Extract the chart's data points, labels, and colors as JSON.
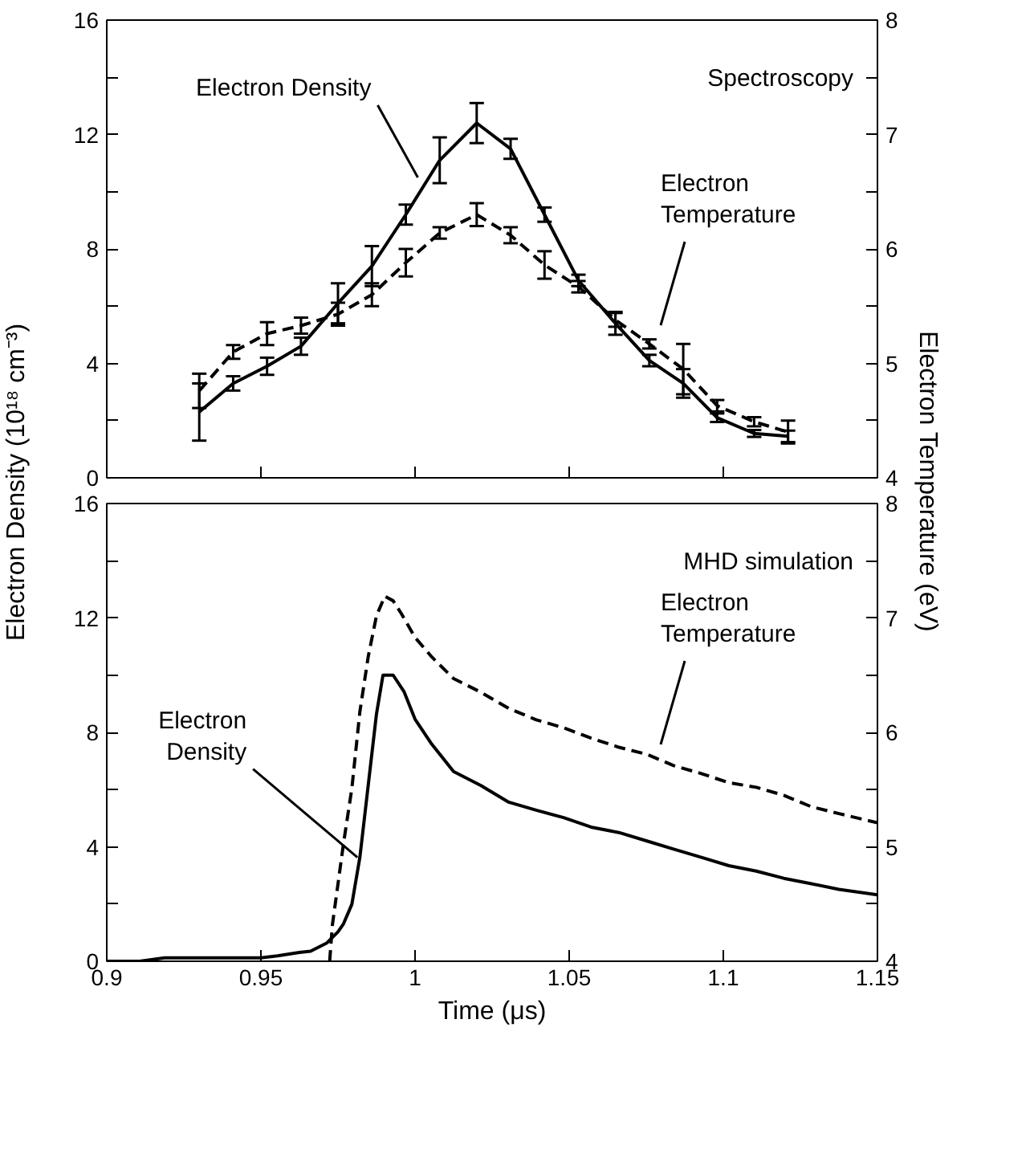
{
  "chart_data": [
    {
      "type": "line",
      "ylabel": "Electron Density (10¹⁸ cm⁻³)",
      "y2label": "Electron Temperature (eV)",
      "x": [
        0.93,
        0.941,
        0.952,
        0.963,
        0.975,
        0.986,
        0.997,
        1.008,
        1.02,
        1.031,
        1.042,
        1.053,
        1.065,
        1.076,
        1.087,
        1.098,
        1.11,
        1.121
      ],
      "series": [
        {
          "color": "#000000",
          "line_style": "solid",
          "values": [
            2.3,
            3.3,
            3.9,
            4.6,
            6.1,
            7.4,
            9.2,
            11.1,
            12.4,
            11.5,
            9.2,
            6.9,
            5.4,
            4.1,
            3.3,
            2.1,
            1.55,
            1.45
          ],
          "errors": [
            1.0,
            0.25,
            0.3,
            0.3,
            0.7,
            0.7,
            0.35,
            0.8,
            0.7,
            0.35,
            0.25,
            0.2,
            0.4,
            0.2,
            0.5,
            0.15,
            0.12,
            0.2
          ]
        },
        {
          "color": "#000000",
          "line_style": "dashed",
          "axis": "y2",
          "values": [
            4.76,
            5.1,
            5.26,
            5.33,
            5.43,
            5.6,
            5.88,
            6.14,
            6.3,
            6.12,
            5.86,
            5.67,
            5.38,
            5.17,
            4.95,
            4.63,
            4.49,
            4.4
          ],
          "errors": [
            0.15,
            0.06,
            0.1,
            0.07,
            0.1,
            0.1,
            0.12,
            0.05,
            0.1,
            0.07,
            0.12,
            0.05,
            0.06,
            0.04,
            0.22,
            0.05,
            0.04,
            0.1
          ]
        }
      ],
      "xlim": [
        0.9,
        1.15
      ],
      "xticks": [
        0.9,
        0.95,
        1,
        1.05,
        1.1,
        1.15
      ],
      "ylim": [
        0,
        16
      ],
      "yticks": [
        0,
        {
          "value": 2,
          "label": null
        },
        4,
        {
          "value": 6,
          "label": null
        },
        8,
        {
          "value": 10,
          "label": null
        },
        12,
        {
          "value": 14,
          "label": null
        },
        16
      ],
      "y2lim": [
        4,
        8
      ],
      "y2ticks": [
        4,
        {
          "value": 4.5,
          "label": null
        },
        5,
        {
          "value": 5.5,
          "label": null
        },
        6,
        {
          "value": 6.5,
          "label": null
        },
        7,
        {
          "value": 7.5,
          "label": null
        },
        8
      ],
      "tick_labels": "y",
      "marker": "none",
      "grid": false,
      "annotations": [
        "Spectroscopy",
        {
          "text": "Electron Density",
          "x": 1.0009,
          "y": 10.5
        },
        "Electron\nTemperature"
      ]
    },
    {
      "type": "line",
      "xlabel": "Time (μs)",
      "series": [
        {
          "color": "#000000",
          "line_style": "solid",
          "x": [
            0.9,
            0.9107,
            0.9188,
            0.95,
            0.9554,
            0.9625,
            0.9661,
            0.9714,
            0.975,
            0.9768,
            0.9795,
            0.9821,
            0.9848,
            0.9875,
            0.9896,
            0.9929,
            0.9964,
            1.0,
            1.0054,
            1.0125,
            1.0214,
            1.0304,
            1.0393,
            1.0482,
            1.0571,
            1.0661,
            1.075,
            1.0839,
            1.0929,
            1.1018,
            1.1107,
            1.1196,
            1.1286,
            1.1375,
            1.15
          ],
          "values": [
            0,
            0,
            0.12,
            0.12,
            0.19,
            0.31,
            0.35,
            0.64,
            1.03,
            1.31,
            1.99,
            3.63,
            6.14,
            8.65,
            10.0,
            10.0,
            9.43,
            8.46,
            7.59,
            6.63,
            6.14,
            5.56,
            5.28,
            5.02,
            4.69,
            4.5,
            4.21,
            3.92,
            3.63,
            3.34,
            3.15,
            2.9,
            2.71,
            2.51,
            2.32
          ]
        },
        {
          "color": "#000000",
          "line_style": "dashed",
          "axis": "y2",
          "x": [
            0.9723,
            0.9732,
            0.9768,
            0.9795,
            0.9821,
            0.9848,
            0.9875,
            0.9902,
            0.9929,
            0.9955,
            1.0,
            1.0054,
            1.0125,
            1.0214,
            1.0304,
            1.0393,
            1.0482,
            1.0571,
            1.0661,
            1.075,
            1.0839,
            1.0929,
            1.1018,
            1.1107,
            1.1196,
            1.1286,
            1.1375,
            1.15
          ],
          "values": [
            4.0,
            4.32,
            5.03,
            5.51,
            6.18,
            6.66,
            7.02,
            7.19,
            7.15,
            7.04,
            6.83,
            6.66,
            6.47,
            6.35,
            6.21,
            6.11,
            6.04,
            5.95,
            5.87,
            5.81,
            5.71,
            5.64,
            5.56,
            5.52,
            5.45,
            5.35,
            5.29,
            5.21
          ]
        }
      ],
      "xlim": [
        0.9,
        1.15
      ],
      "xticks": [
        0.9,
        0.95,
        1,
        1.05,
        1.1,
        1.15
      ],
      "ylim": [
        0,
        16
      ],
      "yticks": [
        0,
        {
          "value": 2,
          "label": null
        },
        4,
        {
          "value": 6,
          "label": null
        },
        8,
        {
          "value": 10,
          "label": null
        },
        12,
        {
          "value": 14,
          "label": null
        },
        16
      ],
      "y2lim": [
        4,
        8
      ],
      "y2ticks": [
        4,
        {
          "value": 4.5,
          "label": null
        },
        5,
        {
          "value": 5.5,
          "label": null
        },
        6,
        {
          "value": 6.5,
          "label": null
        },
        7,
        {
          "value": 7.5,
          "label": null
        },
        8
      ],
      "marker": "none",
      "grid": false,
      "annotations": [
        "MHD simulation",
        {
          "text": "Electron\nDensity",
          "x": 0.9813,
          "y": 3.63
        },
        "Electron\nTemperature"
      ]
    }
  ]
}
